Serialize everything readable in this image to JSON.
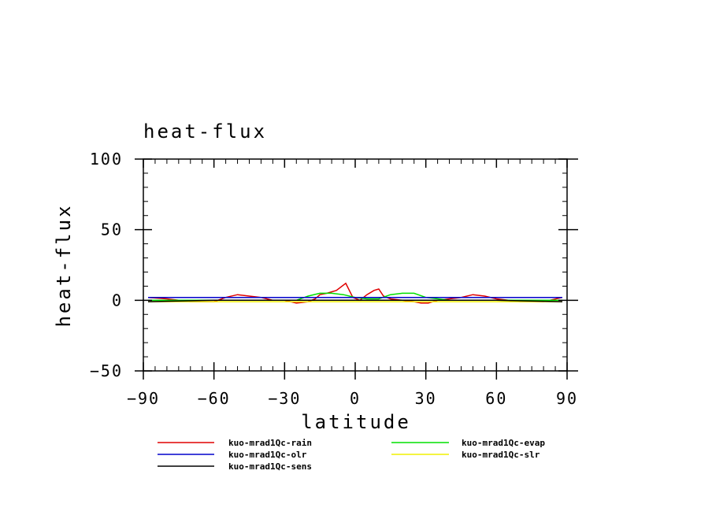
{
  "chart_data": {
    "type": "line",
    "title": "heat-flux",
    "xlabel": "latitude",
    "ylabel": "heat-flux",
    "xlim": [
      -90,
      90
    ],
    "ylim": [
      -50,
      100
    ],
    "x_ticks": [
      -90,
      -60,
      -30,
      0,
      30,
      60,
      90
    ],
    "x_tick_labels": [
      "−90",
      "−60",
      "−30",
      "0",
      "30",
      "60",
      "90"
    ],
    "y_ticks": [
      -50,
      0,
      50,
      100
    ],
    "y_tick_labels": [
      "−50",
      "0",
      "50",
      "100"
    ],
    "grid": false,
    "legend_position": "bottom",
    "series": [
      {
        "name": "kuo-mrad1Qc-rain",
        "color": "#e00000",
        "x": [
          -88,
          -80,
          -75,
          -70,
          -65,
          -60,
          -55,
          -50,
          -45,
          -40,
          -35,
          -30,
          -25,
          -20,
          -17,
          -15,
          -12,
          -8,
          -4,
          -1,
          2,
          5,
          8,
          10,
          12,
          15,
          20,
          25,
          28,
          31,
          35,
          40,
          45,
          50,
          55,
          60,
          65,
          70,
          75,
          80,
          88
        ],
        "y": [
          2,
          1,
          0,
          -1,
          -1,
          -1,
          2,
          4,
          3,
          2,
          0,
          0,
          -2,
          -1,
          1,
          4,
          5,
          7,
          12,
          2,
          0,
          4,
          7,
          8,
          3,
          1,
          0,
          -1,
          -2,
          -2,
          0,
          1,
          2,
          4,
          3,
          1,
          0,
          -1,
          -1,
          -1,
          2
        ]
      },
      {
        "name": "kuo-mrad1Qc-evap",
        "color": "#00e000",
        "x": [
          -88,
          -60,
          -40,
          -25,
          -20,
          -15,
          -10,
          -5,
          0,
          5,
          10,
          15,
          20,
          25,
          30,
          40,
          60,
          88
        ],
        "y": [
          0,
          0,
          0,
          0,
          3,
          5,
          5,
          4,
          2,
          1,
          1,
          4,
          5,
          5,
          2,
          0,
          0,
          0
        ]
      },
      {
        "name": "kuo-mrad1Qc-olr",
        "color": "#0000cc",
        "x": [
          -88,
          -60,
          -30,
          0,
          30,
          60,
          88
        ],
        "y": [
          2,
          2,
          2,
          2,
          2,
          2,
          2
        ]
      },
      {
        "name": "kuo-mrad1Qc-slr",
        "color": "#f0f000",
        "x": [
          -88,
          -60,
          -30,
          0,
          30,
          60,
          88
        ],
        "y": [
          -1,
          -1,
          -1,
          -1,
          -1,
          -1,
          -1
        ]
      },
      {
        "name": "kuo-mrad1Qc-sens",
        "color": "#000000",
        "x": [
          -88,
          -60,
          -30,
          0,
          30,
          60,
          88
        ],
        "y": [
          -1,
          0,
          0,
          0,
          0,
          0,
          -1
        ]
      }
    ]
  }
}
